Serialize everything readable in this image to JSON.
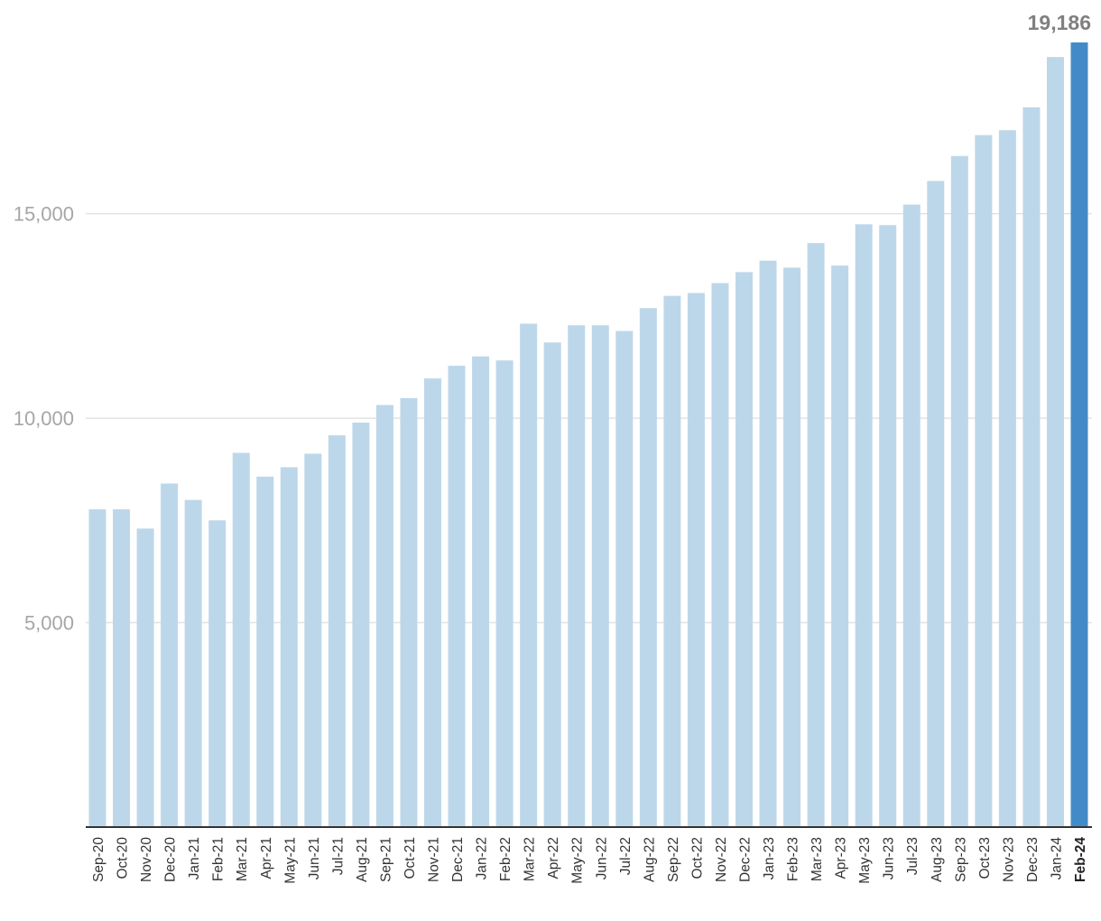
{
  "chart_data": {
    "type": "bar",
    "title": "",
    "xlabel": "",
    "ylabel": "",
    "ylim": [
      0,
      19186
    ],
    "yticks": [
      5000,
      10000,
      15000
    ],
    "ytick_labels": [
      "5,000",
      "10,000",
      "15,000"
    ],
    "grid": true,
    "categories": [
      "Sep-20",
      "Oct-20",
      "Nov-20",
      "Dec-20",
      "Jan-21",
      "Feb-21",
      "Mar-21",
      "Apr-21",
      "May-21",
      "Jun-21",
      "Jul-21",
      "Aug-21",
      "Sep-21",
      "Oct-21",
      "Nov-21",
      "Dec-21",
      "Jan-22",
      "Feb-22",
      "Mar-22",
      "Apr-22",
      "May-22",
      "Jun-22",
      "Jul-22",
      "Aug-22",
      "Sep-22",
      "Oct-22",
      "Nov-22",
      "Dec-22",
      "Jan-23",
      "Feb-23",
      "Mar-23",
      "Apr-23",
      "May-23",
      "Jun-23",
      "Jul-23",
      "Aug-23",
      "Sep-23",
      "Oct-23",
      "Nov-23",
      "Dec-23",
      "Jan-24",
      "Feb-24"
    ],
    "values": [
      7770,
      7770,
      7300,
      8400,
      8000,
      7500,
      9150,
      8570,
      8800,
      9130,
      9580,
      9890,
      10320,
      10490,
      10970,
      11280,
      11510,
      11410,
      12310,
      11850,
      12270,
      12270,
      12130,
      12690,
      12990,
      13060,
      13300,
      13570,
      13850,
      13680,
      14280,
      13730,
      14740,
      14720,
      15220,
      15800,
      16410,
      16920,
      17040,
      17600,
      18830,
      19186
    ],
    "bar_colors": {
      "default": "#bdd7ea",
      "highlight": "#428bc8"
    },
    "highlight_index": 41,
    "data_labels": [
      {
        "index": 41,
        "text": "19,186"
      }
    ]
  }
}
